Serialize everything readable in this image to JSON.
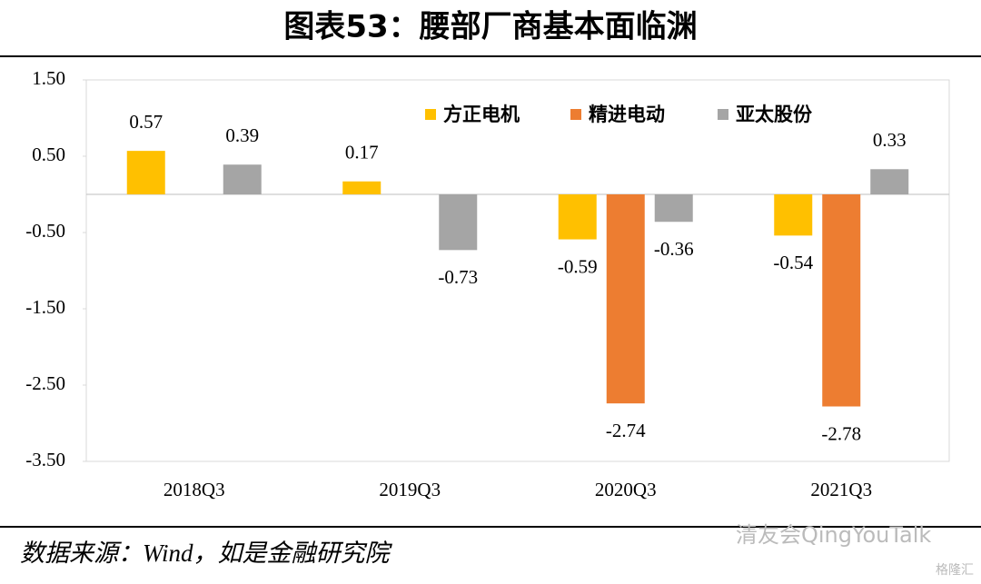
{
  "chart_data": {
    "type": "bar",
    "title": "图表53：腰部厂商基本面临渊",
    "source": "数据来源：Wind，如是金融研究院",
    "watermark": "清友会QingYouTalk",
    "watermark2": "格隆汇",
    "categories": [
      "2018Q3",
      "2019Q3",
      "2020Q3",
      "2021Q3"
    ],
    "series": [
      {
        "name": "方正电机",
        "color": "#FFC000",
        "values": [
          0.57,
          0.17,
          -0.59,
          -0.54
        ]
      },
      {
        "name": "精进电动",
        "color": "#ED7D31",
        "values": [
          null,
          null,
          -2.74,
          -2.78
        ]
      },
      {
        "name": "亚太股份",
        "color": "#A5A5A5",
        "values": [
          0.39,
          -0.73,
          -0.36,
          0.33
        ]
      }
    ],
    "ylim": [
      -3.5,
      1.5
    ],
    "yticks": [
      {
        "value": 1.5,
        "label": "1.50"
      },
      {
        "value": 0.5,
        "label": "0.50"
      },
      {
        "value": -0.5,
        "label": "-0.50"
      },
      {
        "value": -1.5,
        "label": "-1.50"
      },
      {
        "value": -2.5,
        "label": "-2.50"
      },
      {
        "value": -3.5,
        "label": "-3.50"
      }
    ],
    "legend": "top-right"
  }
}
